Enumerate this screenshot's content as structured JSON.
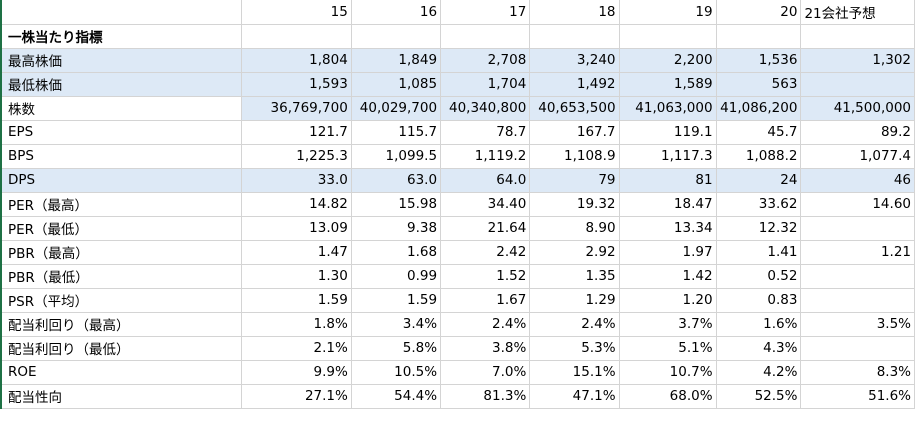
{
  "header": {
    "blank": "",
    "years": [
      "15",
      "16",
      "17",
      "18",
      "19",
      "20",
      "21会社予想"
    ]
  },
  "rows": [
    {
      "label": "一株当たり指標",
      "values": [
        "",
        "",
        "",
        "",
        "",
        "",
        ""
      ]
    },
    {
      "label": "最高株価",
      "values": [
        "1,804",
        "1,849",
        "2,708",
        "3,240",
        "2,200",
        "1,536",
        "1,302"
      ]
    },
    {
      "label": "最低株価",
      "values": [
        "1,593",
        "1,085",
        "1,704",
        "1,492",
        "1,589",
        "563",
        ""
      ]
    },
    {
      "label": "株数",
      "values": [
        "36,769,700",
        "40,029,700",
        "40,340,800",
        "40,653,500",
        "41,063,000",
        "41,086,200",
        "41,500,000"
      ]
    },
    {
      "label": "EPS",
      "values": [
        "121.7",
        "115.7",
        "78.7",
        "167.7",
        "119.1",
        "45.7",
        "89.2"
      ]
    },
    {
      "label": "BPS",
      "values": [
        "1,225.3",
        "1,099.5",
        "1,119.2",
        "1,108.9",
        "1,117.3",
        "1,088.2",
        "1,077.4"
      ]
    },
    {
      "label": "DPS",
      "values": [
        "33.0",
        "63.0",
        "64.0",
        "79",
        "81",
        "24",
        "46"
      ]
    },
    {
      "label": "PER（最高）",
      "values": [
        "14.82",
        "15.98",
        "34.40",
        "19.32",
        "18.47",
        "33.62",
        "14.60"
      ]
    },
    {
      "label": "PER（最低）",
      "values": [
        "13.09",
        "9.38",
        "21.64",
        "8.90",
        "13.34",
        "12.32",
        ""
      ]
    },
    {
      "label": "PBR（最高）",
      "values": [
        "1.47",
        "1.68",
        "2.42",
        "2.92",
        "1.97",
        "1.41",
        "1.21"
      ]
    },
    {
      "label": "PBR（最低）",
      "values": [
        "1.30",
        "0.99",
        "1.52",
        "1.35",
        "1.42",
        "0.52",
        ""
      ]
    },
    {
      "label": "PSR（平均）",
      "values": [
        "1.59",
        "1.59",
        "1.67",
        "1.29",
        "1.20",
        "0.83",
        ""
      ]
    },
    {
      "label": "配当利回り（最高）",
      "values": [
        "1.8%",
        "3.4%",
        "2.4%",
        "2.4%",
        "3.7%",
        "1.6%",
        "3.5%"
      ]
    },
    {
      "label": "配当利回り（最低）",
      "values": [
        "2.1%",
        "5.8%",
        "3.8%",
        "5.3%",
        "5.1%",
        "4.3%",
        ""
      ]
    },
    {
      "label": "ROE",
      "values": [
        "9.9%",
        "10.5%",
        "7.0%",
        "15.1%",
        "10.7%",
        "4.2%",
        "8.3%"
      ]
    },
    {
      "label": "配当性向",
      "values": [
        "27.1%",
        "54.4%",
        "81.3%",
        "47.1%",
        "68.0%",
        "52.5%",
        "51.6%"
      ]
    }
  ],
  "colors": {
    "highlight": "#dde9f6",
    "gridline": "#d4d4d4",
    "selection_border": "#1e7145"
  }
}
